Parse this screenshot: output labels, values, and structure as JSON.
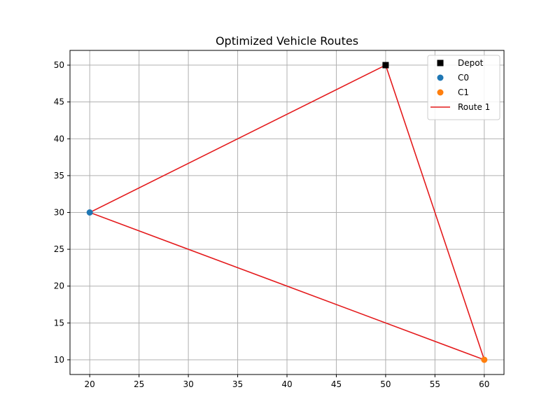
{
  "chart_data": {
    "type": "scatter",
    "title": "Optimized Vehicle Routes",
    "xlabel": "",
    "ylabel": "",
    "xlim": [
      18,
      62
    ],
    "ylim": [
      8,
      52
    ],
    "xticks": [
      20,
      25,
      30,
      35,
      40,
      45,
      50,
      55,
      60
    ],
    "yticks": [
      10,
      15,
      20,
      25,
      30,
      35,
      40,
      45,
      50
    ],
    "grid": true,
    "legend_position": "top-right",
    "points": [
      {
        "name": "Depot",
        "x": 50,
        "y": 50,
        "marker": "square",
        "color": "#000000"
      },
      {
        "name": "C0",
        "x": 20,
        "y": 30,
        "marker": "circle",
        "color": "#1f77b4"
      },
      {
        "name": "C1",
        "x": 60,
        "y": 10,
        "marker": "circle",
        "color": "#ff7f0e"
      }
    ],
    "routes": [
      {
        "name": "Route 1",
        "color": "#e41a1c",
        "path": [
          [
            50,
            50
          ],
          [
            20,
            30
          ],
          [
            60,
            10
          ],
          [
            50,
            50
          ]
        ]
      }
    ]
  }
}
